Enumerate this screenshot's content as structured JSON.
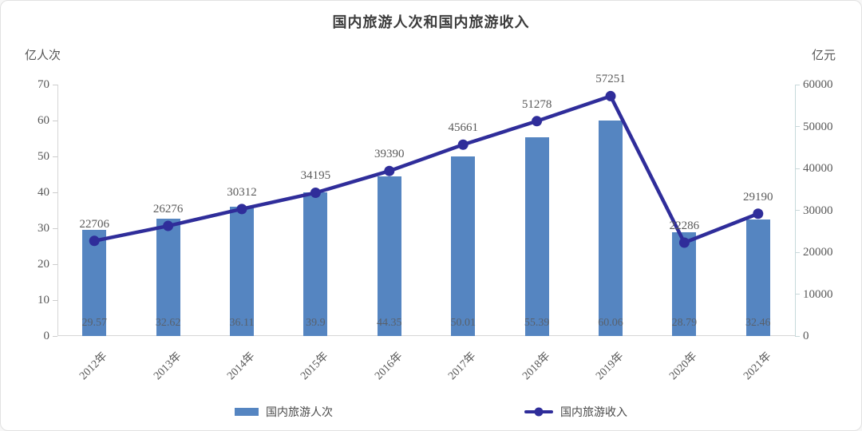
{
  "chart_data": {
    "type": "bar+line",
    "title": "国内旅游人次和国内旅游收入",
    "categories": [
      "2012年",
      "2013年",
      "2014年",
      "2015年",
      "2016年",
      "2017年",
      "2018年",
      "2019年",
      "2020年",
      "2021年"
    ],
    "left_axis": {
      "unit": "亿人次",
      "min": 0,
      "max": 70,
      "step": 10,
      "ticks": [
        0,
        10,
        20,
        30,
        40,
        50,
        60,
        70
      ]
    },
    "right_axis": {
      "unit": "亿元",
      "min": 0,
      "max": 60000,
      "step": 10000,
      "ticks": [
        0,
        10000,
        20000,
        30000,
        40000,
        50000,
        60000
      ]
    },
    "series": [
      {
        "name": "国内旅游人次",
        "type": "bar",
        "axis": "left",
        "color": "#5585c1",
        "values": [
          29.57,
          32.62,
          36.11,
          39.9,
          44.35,
          50.01,
          55.39,
          60.06,
          28.79,
          32.46
        ],
        "labels": [
          "29.57",
          "32.62",
          "36.11",
          "39.9",
          "44.35",
          "50.01",
          "55.39",
          "60.06",
          "28.79",
          "32.46"
        ]
      },
      {
        "name": "国内旅游收入",
        "type": "line",
        "axis": "right",
        "color": "#2f2d9a",
        "values": [
          22706,
          26276,
          30312,
          34195,
          39390,
          45661,
          51278,
          57251,
          22286,
          29190
        ],
        "labels": [
          "22706",
          "26276",
          "30312",
          "34195",
          "39390",
          "45661",
          "51278",
          "57251",
          "22286",
          "29190"
        ]
      }
    ],
    "legend_position": "bottom-center",
    "grid": "off"
  }
}
